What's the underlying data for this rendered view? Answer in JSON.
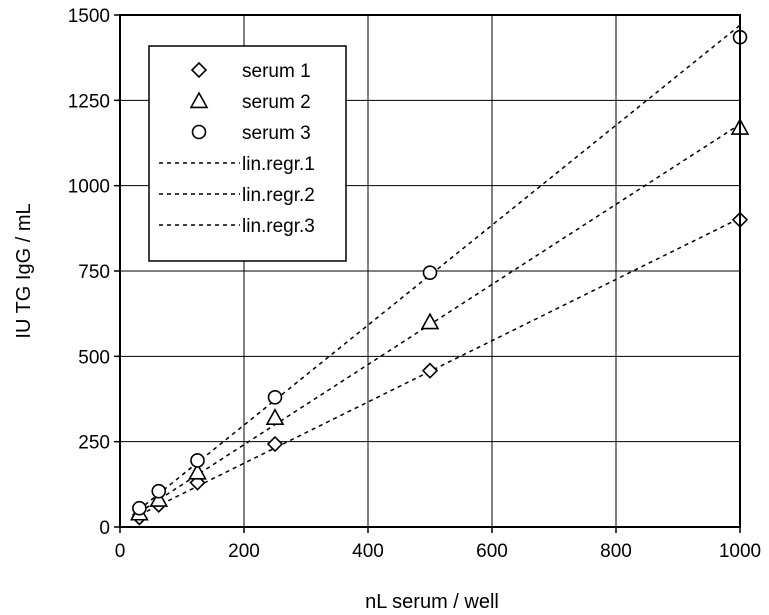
{
  "chart_data": {
    "type": "scatter",
    "xlabel": "nL serum / well",
    "ylabel": "IU  TG IgG / mL",
    "xlim": [
      0,
      1000
    ],
    "ylim": [
      0,
      1500
    ],
    "x_ticks": [
      "0",
      "200",
      "400",
      "600",
      "800",
      "1000"
    ],
    "y_ticks": [
      "0",
      "250",
      "500",
      "750",
      "1000",
      "1250",
      "1500"
    ],
    "grid": true,
    "legend_position": "top-left",
    "series": [
      {
        "name": "serum 1",
        "marker": "diamond",
        "x": [
          31.25,
          62.5,
          125,
          250,
          500,
          1000
        ],
        "y": [
          28,
          65,
          130,
          243,
          458,
          900
        ]
      },
      {
        "name": "serum 2",
        "marker": "triangle",
        "x": [
          31.25,
          62.5,
          125,
          250,
          500,
          1000
        ],
        "y": [
          40,
          80,
          160,
          320,
          600,
          1170
        ]
      },
      {
        "name": "serum 3",
        "marker": "circle",
        "x": [
          31.25,
          62.5,
          125,
          250,
          500,
          1000
        ],
        "y": [
          55,
          105,
          195,
          380,
          745,
          1435
        ]
      }
    ],
    "regression_lines": [
      {
        "name": "lin.regr.1",
        "style": "dashed",
        "x": [
          20,
          1000
        ],
        "y": [
          25,
          905
        ]
      },
      {
        "name": "lin.regr.2",
        "style": "dashed",
        "x": [
          20,
          1000
        ],
        "y": [
          30,
          1180
        ]
      },
      {
        "name": "lin.regr.3",
        "style": "dashed",
        "x": [
          20,
          1000
        ],
        "y": [
          35,
          1470
        ]
      }
    ]
  }
}
